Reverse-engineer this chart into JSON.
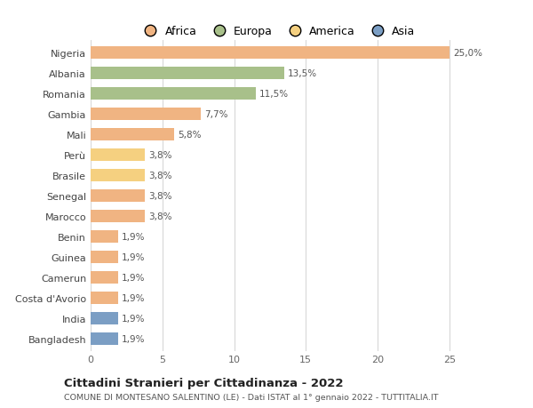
{
  "categories": [
    "Nigeria",
    "Albania",
    "Romania",
    "Gambia",
    "Mali",
    "Perù",
    "Brasile",
    "Senegal",
    "Marocco",
    "Benin",
    "Guinea",
    "Camerun",
    "Costa d'Avorio",
    "India",
    "Bangladesh"
  ],
  "values": [
    25.0,
    13.5,
    11.5,
    7.7,
    5.8,
    3.8,
    3.8,
    3.8,
    3.8,
    1.9,
    1.9,
    1.9,
    1.9,
    1.9,
    1.9
  ],
  "labels": [
    "25,0%",
    "13,5%",
    "11,5%",
    "7,7%",
    "5,8%",
    "3,8%",
    "3,8%",
    "3,8%",
    "3,8%",
    "1,9%",
    "1,9%",
    "1,9%",
    "1,9%",
    "1,9%",
    "1,9%"
  ],
  "colors": [
    "#F0B482",
    "#A8C08A",
    "#A8C08A",
    "#F0B482",
    "#F0B482",
    "#F5D080",
    "#F5D080",
    "#F0B482",
    "#F0B482",
    "#F0B482",
    "#F0B482",
    "#F0B482",
    "#F0B482",
    "#7B9EC4",
    "#7B9EC4"
  ],
  "legend_labels": [
    "Africa",
    "Europa",
    "America",
    "Asia"
  ],
  "legend_colors": [
    "#F0B482",
    "#A8C08A",
    "#F5D080",
    "#7B9EC4"
  ],
  "xlim_max": 26,
  "xticks": [
    0,
    5,
    10,
    15,
    20,
    25
  ],
  "title": "Cittadini Stranieri per Cittadinanza - 2022",
  "subtitle": "COMUNE DI MONTESANO SALENTINO (LE) - Dati ISTAT al 1° gennaio 2022 - TUTTITALIA.IT",
  "bg_color": "#FFFFFF",
  "grid_color": "#D8D8D8",
  "bar_height": 0.62
}
